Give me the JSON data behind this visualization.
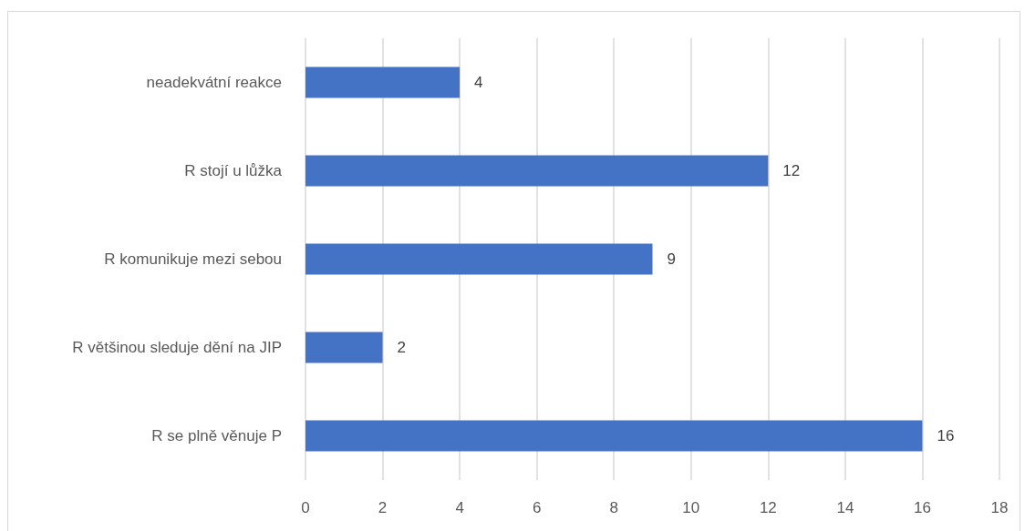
{
  "chart_data": {
    "type": "bar",
    "orientation": "horizontal",
    "categories": [
      "neadekvátní reakce",
      "R stojí u lůžka",
      "R komunikuje mezi sebou",
      "R většinou sleduje dění na JIP",
      "R se plně věnuje P"
    ],
    "values": [
      4,
      12,
      9,
      2,
      16
    ],
    "color": "#4472c4",
    "xlim": [
      0,
      18
    ],
    "xticks": [
      0,
      2,
      4,
      6,
      8,
      10,
      12,
      14,
      16,
      18
    ],
    "grid": "x",
    "data_labels": true
  }
}
